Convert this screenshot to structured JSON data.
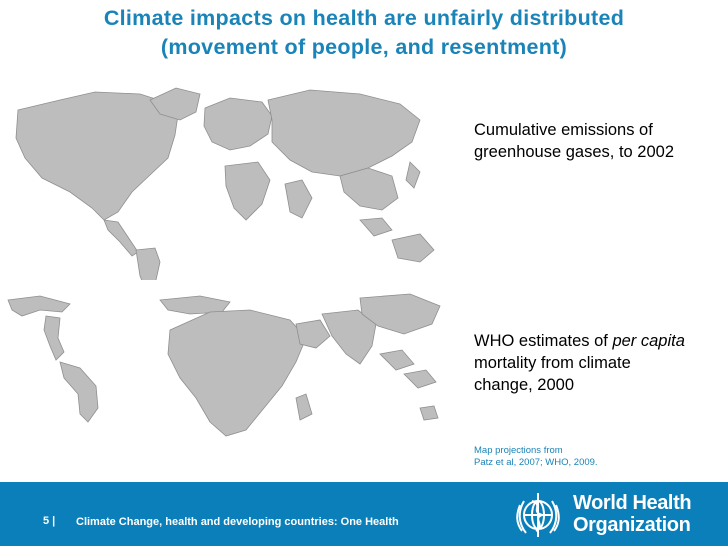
{
  "title": {
    "line1": "Climate impacts on health are unfairly distributed",
    "line2": "(movement of people, and resentment)"
  },
  "captions": {
    "top": "Cumulative emissions of greenhouse gases, to 2002",
    "bottom_pre": "WHO estimates of ",
    "bottom_italic": "per capita",
    "bottom_post": " mortality from climate change, 2000"
  },
  "source": {
    "line1": "Map projections from",
    "line2": "Patz et al, 2007;  WHO, 2009."
  },
  "footer": {
    "page_number": "5 |",
    "text": "Climate Change, health and developing countries: One Health",
    "org_line1": "World Health",
    "org_line2": "Organization"
  },
  "colors": {
    "title": "#1a84b8",
    "footer_bg": "#0a7fb9",
    "land": "#bdbdbd",
    "land_outline": "#8f8f8f"
  }
}
